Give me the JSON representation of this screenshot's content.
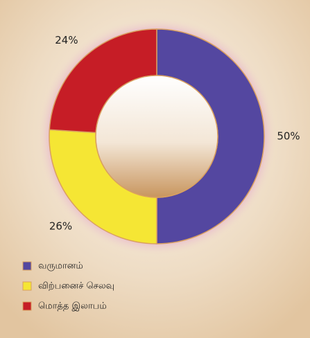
{
  "chart_data": {
    "type": "donut",
    "categories": [
      "வருமானம்",
      "விற்பனைச் செலவு",
      "மொத்த இலாபம்"
    ],
    "values": [
      50,
      26,
      24
    ],
    "value_labels": [
      "50%",
      "26%",
      "24%"
    ],
    "colors": [
      "#5447a0",
      "#f5e634",
      "#c61d26"
    ],
    "legend": "bottom-left"
  }
}
